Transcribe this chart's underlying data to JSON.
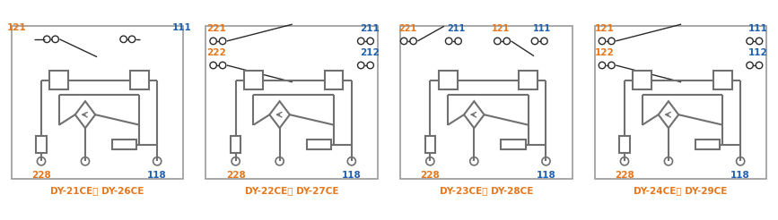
{
  "figsize": [
    8.67,
    2.46
  ],
  "dpi": 100,
  "orange": "#E8761A",
  "blue": "#2060B0",
  "dark": "#2B2B2B",
  "gray": "#707070",
  "border": "#999999",
  "bg": "#FFFFFF",
  "panels": [
    {
      "label": "DY-21CE， DY-26CE",
      "type": 1
    },
    {
      "label": "DY-22CE， DY-27CE",
      "type": 2
    },
    {
      "label": "DY-23CE， DY-28CE",
      "type": 3
    },
    {
      "label": "DY-24CE， DY-29CE",
      "type": 4
    }
  ]
}
